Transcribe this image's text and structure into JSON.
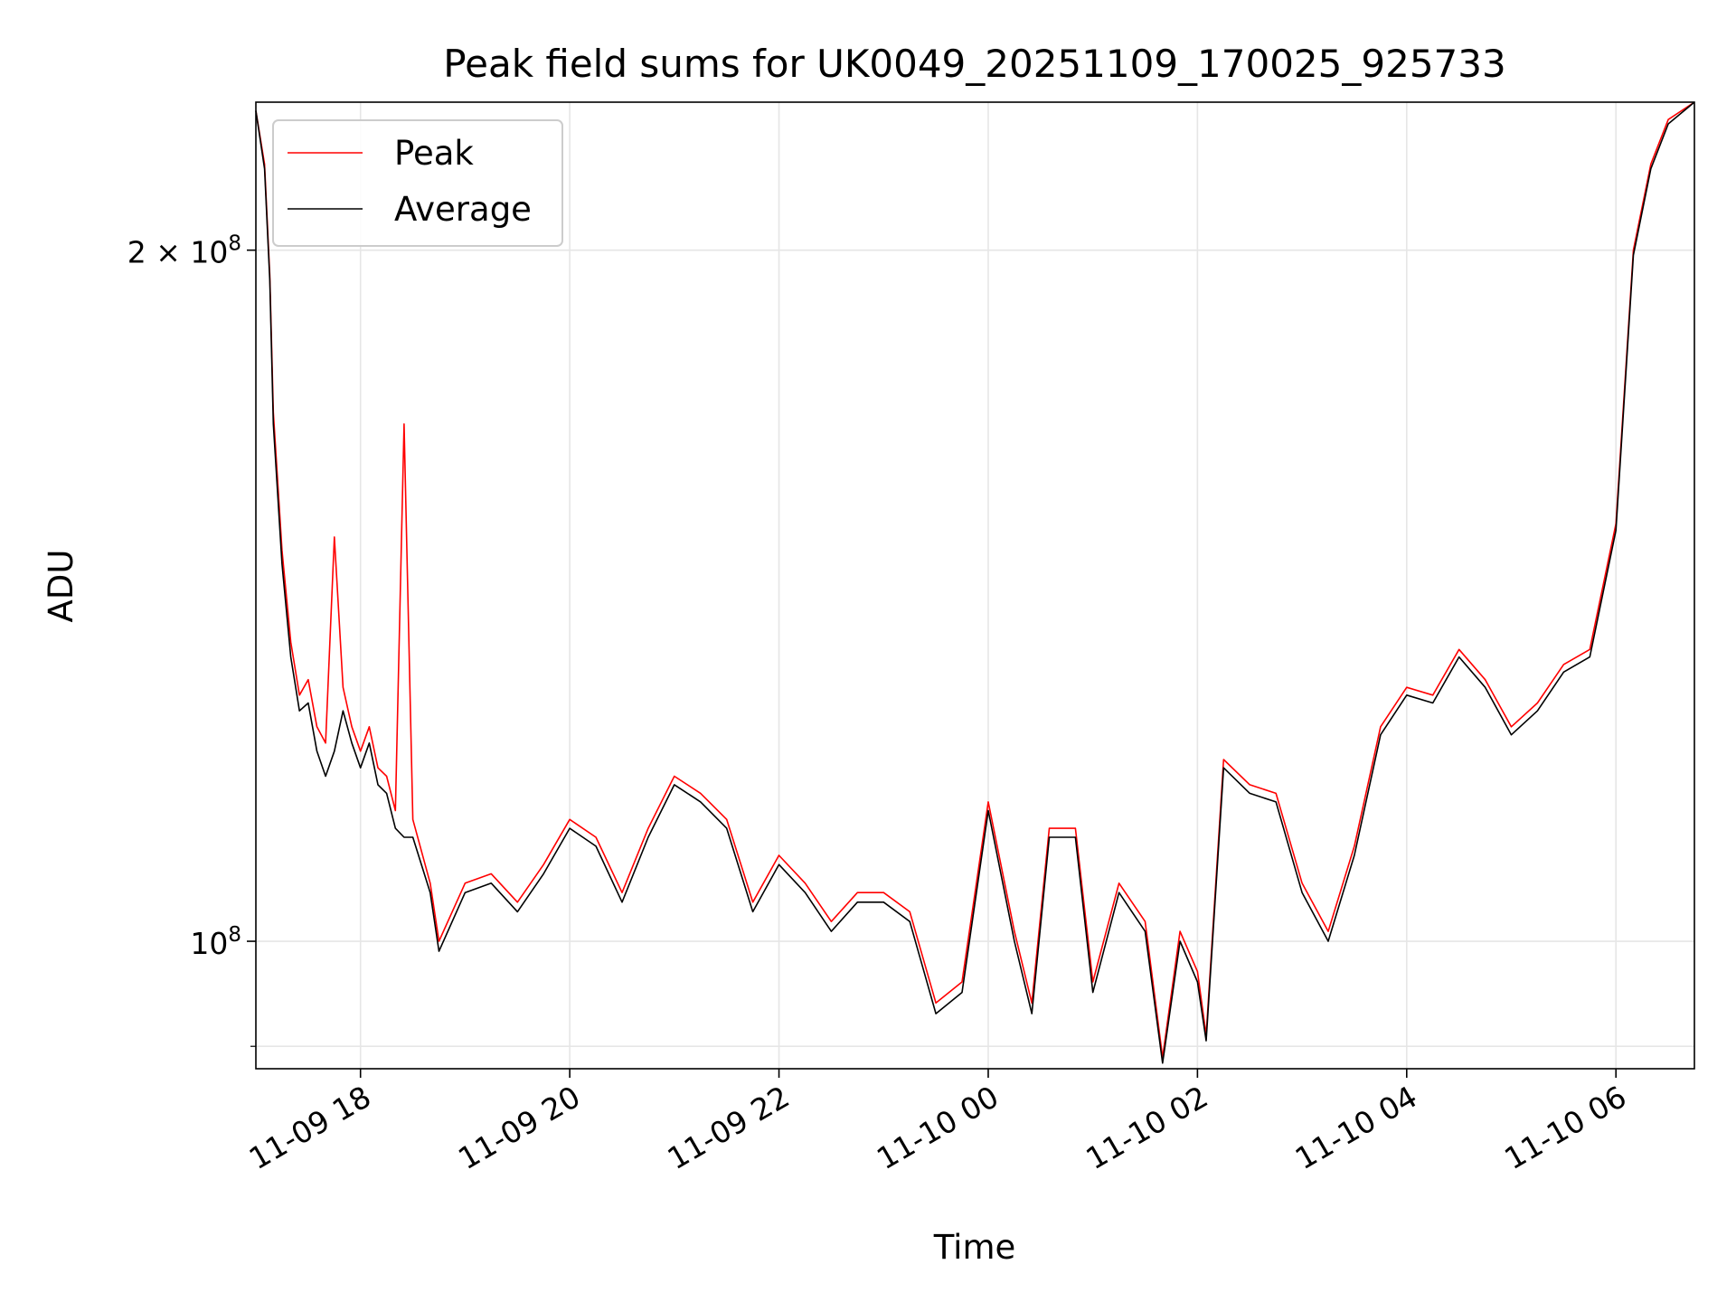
{
  "chart_data": {
    "type": "line",
    "title": "Peak field sums for UK0049_20251109_170025_925733",
    "xlabel": "Time",
    "ylabel": "ADU",
    "yscale": "log",
    "ylim": [
      88000000,
      232000000
    ],
    "xlim": [
      "2025-11-09 17:00",
      "2025-11-10 06:45"
    ],
    "grid": true,
    "legend_position": "top-left",
    "x_ticks": [
      {
        "label": "11-09 18",
        "time": "2025-11-09 18:00"
      },
      {
        "label": "11-09 20",
        "time": "2025-11-09 20:00"
      },
      {
        "label": "11-09 22",
        "time": "2025-11-09 22:00"
      },
      {
        "label": "11-10 00",
        "time": "2025-11-10 00:00"
      },
      {
        "label": "11-10 02",
        "time": "2025-11-10 02:00"
      },
      {
        "label": "11-10 04",
        "time": "2025-11-10 04:00"
      },
      {
        "label": "11-10 06",
        "time": "2025-11-10 06:00"
      }
    ],
    "y_ticks": [
      {
        "base": "2 × 10",
        "exp": "8",
        "value": 200000000
      },
      {
        "base": "10",
        "exp": "8",
        "value": 100000000
      }
    ],
    "y_minor_gridline": 90000000,
    "series": [
      {
        "name": "Peak",
        "color": "#ff0000",
        "x": [
          "2025-11-09 17:00",
          "2025-11-09 17:05",
          "2025-11-09 17:08",
          "2025-11-09 17:10",
          "2025-11-09 17:15",
          "2025-11-09 17:20",
          "2025-11-09 17:25",
          "2025-11-09 17:30",
          "2025-11-09 17:35",
          "2025-11-09 17:40",
          "2025-11-09 17:45",
          "2025-11-09 17:50",
          "2025-11-09 17:55",
          "2025-11-09 18:00",
          "2025-11-09 18:05",
          "2025-11-09 18:10",
          "2025-11-09 18:15",
          "2025-11-09 18:20",
          "2025-11-09 18:25",
          "2025-11-09 18:30",
          "2025-11-09 18:40",
          "2025-11-09 18:45",
          "2025-11-09 19:00",
          "2025-11-09 19:15",
          "2025-11-09 19:30",
          "2025-11-09 19:45",
          "2025-11-09 20:00",
          "2025-11-09 20:15",
          "2025-11-09 20:30",
          "2025-11-09 20:45",
          "2025-11-09 21:00",
          "2025-11-09 21:15",
          "2025-11-09 21:30",
          "2025-11-09 21:45",
          "2025-11-09 22:00",
          "2025-11-09 22:15",
          "2025-11-09 22:30",
          "2025-11-09 22:45",
          "2025-11-09 23:00",
          "2025-11-09 23:15",
          "2025-11-09 23:30",
          "2025-11-09 23:45",
          "2025-11-10 00:00",
          "2025-11-10 00:15",
          "2025-11-10 00:25",
          "2025-11-10 00:35",
          "2025-11-10 00:50",
          "2025-11-10 01:00",
          "2025-11-10 01:15",
          "2025-11-10 01:30",
          "2025-11-10 01:40",
          "2025-11-10 01:50",
          "2025-11-10 02:00",
          "2025-11-10 02:05",
          "2025-11-10 02:15",
          "2025-11-10 02:30",
          "2025-11-10 02:45",
          "2025-11-10 03:00",
          "2025-11-10 03:15",
          "2025-11-10 03:30",
          "2025-11-10 03:45",
          "2025-11-10 04:00",
          "2025-11-10 04:15",
          "2025-11-10 04:30",
          "2025-11-10 04:45",
          "2025-11-10 05:00",
          "2025-11-10 05:15",
          "2025-11-10 05:30",
          "2025-11-10 05:45",
          "2025-11-10 06:00",
          "2025-11-10 06:10",
          "2025-11-10 06:20",
          "2025-11-10 06:30",
          "2025-11-10 06:45"
        ],
        "values": [
          230000000,
          218000000,
          195000000,
          170000000,
          148000000,
          135000000,
          128000000,
          130000000,
          124000000,
          122000000,
          150000000,
          129000000,
          124000000,
          121000000,
          124000000,
          119000000,
          118000000,
          114000000,
          168000000,
          113000000,
          106000000,
          100000000,
          106000000,
          107000000,
          104000000,
          108000000,
          113000000,
          111000000,
          105000000,
          112000000,
          118000000,
          116000000,
          113000000,
          104000000,
          109000000,
          106000000,
          102000000,
          105000000,
          105000000,
          103000000,
          94000000,
          96000000,
          115000000,
          101000000,
          94000000,
          112000000,
          112000000,
          96000000,
          106000000,
          102000000,
          89000000,
          101000000,
          97000000,
          91000000,
          120000000,
          117000000,
          116000000,
          106000000,
          101000000,
          110000000,
          124000000,
          129000000,
          128000000,
          134000000,
          130000000,
          124000000,
          127000000,
          132000000,
          134000000,
          152000000,
          200000000,
          218000000,
          228000000,
          232000000
        ]
      },
      {
        "name": "Average",
        "color": "#000000",
        "x": [
          "2025-11-09 17:00",
          "2025-11-09 17:05",
          "2025-11-09 17:08",
          "2025-11-09 17:10",
          "2025-11-09 17:15",
          "2025-11-09 17:20",
          "2025-11-09 17:25",
          "2025-11-09 17:30",
          "2025-11-09 17:35",
          "2025-11-09 17:40",
          "2025-11-09 17:45",
          "2025-11-09 17:50",
          "2025-11-09 17:55",
          "2025-11-09 18:00",
          "2025-11-09 18:05",
          "2025-11-09 18:10",
          "2025-11-09 18:15",
          "2025-11-09 18:20",
          "2025-11-09 18:25",
          "2025-11-09 18:30",
          "2025-11-09 18:40",
          "2025-11-09 18:45",
          "2025-11-09 19:00",
          "2025-11-09 19:15",
          "2025-11-09 19:30",
          "2025-11-09 19:45",
          "2025-11-09 20:00",
          "2025-11-09 20:15",
          "2025-11-09 20:30",
          "2025-11-09 20:45",
          "2025-11-09 21:00",
          "2025-11-09 21:15",
          "2025-11-09 21:30",
          "2025-11-09 21:45",
          "2025-11-09 22:00",
          "2025-11-09 22:15",
          "2025-11-09 22:30",
          "2025-11-09 22:45",
          "2025-11-09 23:00",
          "2025-11-09 23:15",
          "2025-11-09 23:30",
          "2025-11-09 23:45",
          "2025-11-10 00:00",
          "2025-11-10 00:15",
          "2025-11-10 00:25",
          "2025-11-10 00:35",
          "2025-11-10 00:50",
          "2025-11-10 01:00",
          "2025-11-10 01:15",
          "2025-11-10 01:30",
          "2025-11-10 01:40",
          "2025-11-10 01:50",
          "2025-11-10 02:00",
          "2025-11-10 02:05",
          "2025-11-10 02:15",
          "2025-11-10 02:30",
          "2025-11-10 02:45",
          "2025-11-10 03:00",
          "2025-11-10 03:15",
          "2025-11-10 03:30",
          "2025-11-10 03:45",
          "2025-11-10 04:00",
          "2025-11-10 04:15",
          "2025-11-10 04:30",
          "2025-11-10 04:45",
          "2025-11-10 05:00",
          "2025-11-10 05:15",
          "2025-11-10 05:30",
          "2025-11-10 05:45",
          "2025-11-10 06:00",
          "2025-11-10 06:10",
          "2025-11-10 06:20",
          "2025-11-10 06:30",
          "2025-11-10 06:45"
        ],
        "values": [
          230000000,
          217000000,
          194000000,
          168000000,
          146000000,
          133000000,
          126000000,
          127000000,
          121000000,
          118000000,
          121000000,
          126000000,
          122000000,
          119000000,
          122000000,
          117000000,
          116000000,
          112000000,
          111000000,
          111000000,
          105000000,
          99000000,
          105000000,
          106000000,
          103000000,
          107000000,
          112000000,
          110000000,
          104000000,
          111000000,
          117000000,
          115000000,
          112000000,
          103000000,
          108000000,
          105000000,
          101000000,
          104000000,
          104000000,
          102000000,
          93000000,
          95000000,
          114000000,
          100000000,
          93000000,
          111000000,
          111000000,
          95000000,
          105000000,
          101000000,
          88500000,
          100000000,
          96000000,
          90500000,
          119000000,
          116000000,
          115000000,
          105000000,
          100000000,
          109000000,
          123000000,
          128000000,
          127000000,
          133000000,
          129000000,
          123000000,
          126000000,
          131000000,
          133000000,
          151000000,
          199000000,
          217000000,
          227000000,
          232000000
        ]
      }
    ]
  }
}
